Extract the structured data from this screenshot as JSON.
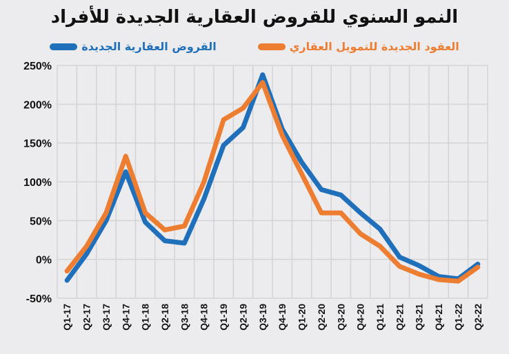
{
  "chart_data": {
    "type": "line",
    "title": "النمو السنوي للقروض العقارية الجديدة للأفراد",
    "categories": [
      "Q1-17",
      "Q2-17",
      "Q3-17",
      "Q4-17",
      "Q1-18",
      "Q2-18",
      "Q3-18",
      "Q4-18",
      "Q1-19",
      "Q2-19",
      "Q3-19",
      "Q4-19",
      "Q1-20",
      "Q2-20",
      "Q3-20",
      "Q4-20",
      "Q1-21",
      "Q2-21",
      "Q3-21",
      "Q4-21",
      "Q1-22",
      "Q2-22"
    ],
    "series": [
      {
        "name": "العقود الجديدة للتمويل العقاري",
        "color": "#ed7d31",
        "values": [
          -15,
          17,
          60,
          133,
          60,
          38,
          43,
          100,
          180,
          195,
          228,
          160,
          110,
          60,
          60,
          33,
          17,
          -9,
          -19,
          -26,
          -28,
          -10
        ]
      },
      {
        "name": "القروض العقارية الجديدة",
        "color": "#1f6fba",
        "values": [
          -27,
          7,
          50,
          113,
          48,
          24,
          21,
          78,
          147,
          170,
          238,
          168,
          125,
          90,
          83,
          60,
          39,
          3,
          -8,
          -22,
          -25,
          -6
        ]
      }
    ],
    "ylim": [
      -50,
      250
    ],
    "yticks": [
      -50,
      0,
      50,
      100,
      150,
      200,
      250
    ],
    "ytick_labels": [
      "-50%",
      "0%",
      "50%",
      "100%",
      "150%",
      "200%",
      "250%"
    ],
    "grid": true,
    "legend": "top-center"
  }
}
